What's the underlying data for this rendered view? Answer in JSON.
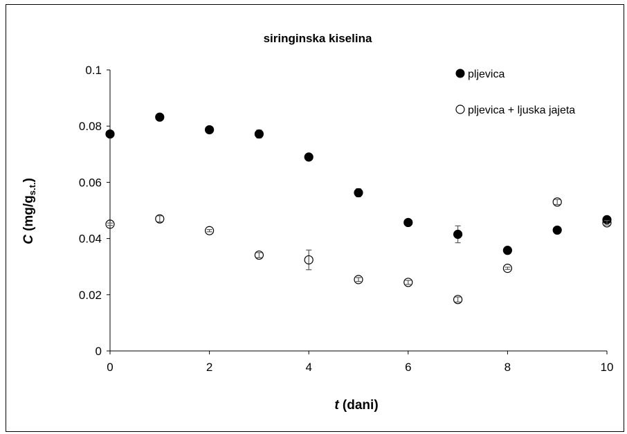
{
  "chart_data": {
    "type": "scatter",
    "title": "siringinska kiselina",
    "xlabel_var": "t",
    "xlabel_rest": " (dani)",
    "ylabel_var": "C",
    "ylabel_open": " (mg/g",
    "ylabel_sub": "s.t.",
    "ylabel_close": ")",
    "xlim": [
      0,
      10
    ],
    "ylim": [
      0,
      0.1
    ],
    "xticks": [
      "0",
      "2",
      "4",
      "6",
      "8",
      "10"
    ],
    "yticks": [
      "0",
      "0.02",
      "0.04",
      "0.06",
      "0.08",
      "0.1"
    ],
    "grid": false,
    "legend_position": "top-right",
    "series": [
      {
        "name": "pljevica",
        "marker": "filled-circle",
        "x": [
          0,
          1,
          2,
          3,
          4,
          5,
          6,
          7,
          8,
          9,
          10
        ],
        "y": [
          0.0772,
          0.0832,
          0.0787,
          0.0772,
          0.069,
          0.0563,
          0.0457,
          0.0415,
          0.0358,
          0.043,
          0.0467
        ],
        "err": [
          0.0005,
          0.0004,
          0.0004,
          0.0014,
          0.0004,
          0.0014,
          0.0004,
          0.003,
          0.0004,
          0.0004,
          0.0004
        ]
      },
      {
        "name": "pljevica + ljuska jajeta",
        "marker": "open-circle",
        "x": [
          0,
          1,
          2,
          3,
          4,
          5,
          6,
          7,
          8,
          9,
          10
        ],
        "y": [
          0.0451,
          0.047,
          0.0428,
          0.0341,
          0.0324,
          0.0254,
          0.0244,
          0.0183,
          0.0294,
          0.053,
          0.0456
        ],
        "err": [
          0.0004,
          0.0011,
          0.0004,
          0.0009,
          0.0035,
          0.0007,
          0.0007,
          0.0009,
          0.0004,
          0.0009,
          0.0008
        ]
      }
    ],
    "colors": {
      "marker": "#000000",
      "error_bar": "#595959",
      "axis": "#000000"
    }
  }
}
